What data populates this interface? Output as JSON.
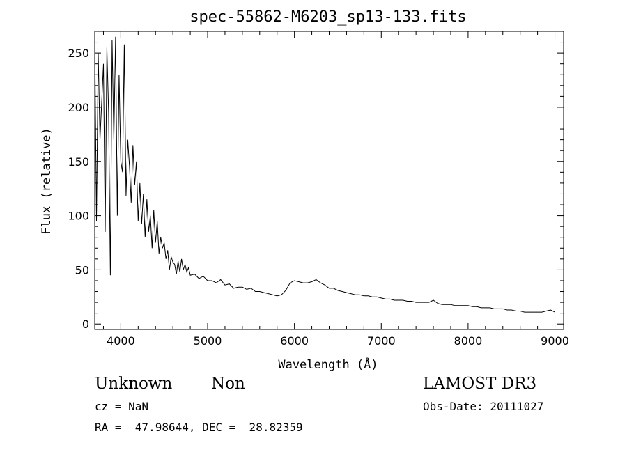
{
  "chart_data": {
    "type": "line",
    "title": "spec-55862-M6203_sp13-133.fits",
    "xlabel": "Wavelength (Å)",
    "ylabel": "Flux (relative)",
    "xlim": [
      3700,
      9100
    ],
    "ylim": [
      -5,
      270
    ],
    "xticks": [
      4000,
      5000,
      6000,
      7000,
      8000,
      9000
    ],
    "yticks": [
      0,
      50,
      100,
      150,
      200,
      250
    ],
    "grid": false,
    "series": [
      {
        "name": "flux",
        "x": [
          3700,
          3720,
          3740,
          3760,
          3780,
          3800,
          3820,
          3840,
          3860,
          3880,
          3900,
          3920,
          3940,
          3960,
          3980,
          4000,
          4020,
          4040,
          4060,
          4080,
          4100,
          4120,
          4140,
          4160,
          4180,
          4200,
          4220,
          4240,
          4260,
          4280,
          4300,
          4320,
          4340,
          4360,
          4380,
          4400,
          4420,
          4440,
          4460,
          4480,
          4500,
          4520,
          4540,
          4560,
          4580,
          4600,
          4620,
          4640,
          4660,
          4680,
          4700,
          4720,
          4740,
          4760,
          4780,
          4800,
          4850,
          4900,
          4950,
          5000,
          5050,
          5100,
          5150,
          5200,
          5250,
          5300,
          5350,
          5400,
          5450,
          5500,
          5550,
          5600,
          5650,
          5700,
          5750,
          5800,
          5850,
          5900,
          5950,
          6000,
          6050,
          6100,
          6150,
          6200,
          6250,
          6300,
          6350,
          6400,
          6450,
          6500,
          6550,
          6600,
          6650,
          6700,
          6750,
          6800,
          6850,
          6900,
          6950,
          7000,
          7050,
          7100,
          7150,
          7200,
          7250,
          7300,
          7350,
          7400,
          7450,
          7500,
          7550,
          7600,
          7650,
          7700,
          7750,
          7800,
          7850,
          7900,
          7950,
          8000,
          8050,
          8100,
          8150,
          8200,
          8250,
          8300,
          8350,
          8400,
          8450,
          8500,
          8550,
          8600,
          8650,
          8700,
          8750,
          8800,
          8850,
          8900,
          8950,
          9000
        ],
        "values": [
          262,
          95,
          250,
          170,
          205,
          240,
          85,
          255,
          195,
          45,
          262,
          170,
          265,
          100,
          230,
          150,
          140,
          258,
          118,
          170,
          145,
          112,
          165,
          128,
          150,
          95,
          130,
          92,
          120,
          80,
          115,
          85,
          100,
          70,
          105,
          75,
          95,
          65,
          80,
          70,
          75,
          60,
          68,
          50,
          62,
          57,
          55,
          46,
          58,
          48,
          60,
          50,
          55,
          48,
          52,
          45,
          46,
          42,
          44,
          40,
          40,
          38,
          41,
          36,
          37,
          33,
          34,
          34,
          32,
          33,
          30,
          30,
          29,
          28,
          27,
          26,
          27,
          31,
          38,
          40,
          39,
          38,
          38,
          39,
          41,
          38,
          36,
          33,
          33,
          31,
          30,
          29,
          28,
          27,
          27,
          26,
          26,
          25,
          25,
          24,
          23,
          23,
          22,
          22,
          22,
          21,
          21,
          20,
          20,
          20,
          20,
          22,
          19,
          18,
          18,
          18,
          17,
          17,
          17,
          17,
          16,
          16,
          15,
          15,
          15,
          14,
          14,
          14,
          13,
          13,
          12,
          12,
          11,
          11,
          11,
          11,
          11,
          12,
          13,
          11
        ]
      }
    ]
  },
  "info": {
    "object_class": "Unknown",
    "object_subclass": "Non",
    "survey": "LAMOST DR3",
    "cz_line": "cz = NaN",
    "obs_date_line": "Obs-Date: 20111027",
    "coords_line": "RA =  47.98644, DEC =  28.82359"
  }
}
